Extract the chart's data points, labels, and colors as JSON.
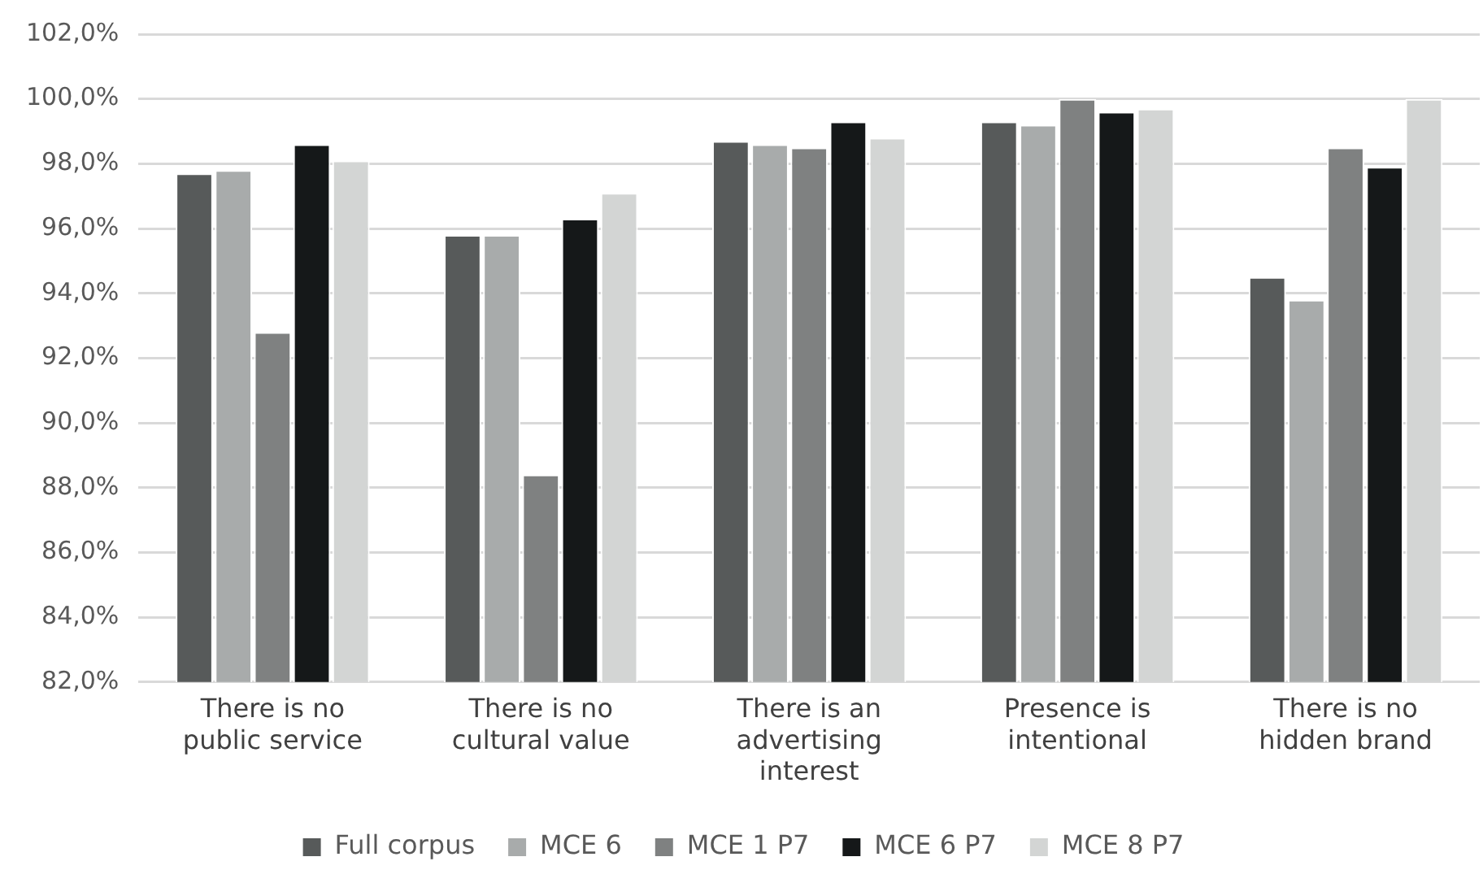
{
  "chart_data": {
    "type": "bar",
    "categories": [
      "There is no public service",
      "There is no cultural value",
      "There is an advertising interest",
      "Presence is intentional",
      "There is no hidden brand"
    ],
    "series": [
      {
        "name": "Full corpus",
        "color": "#575a5a",
        "values": [
          97.7,
          95.8,
          98.7,
          99.3,
          94.5
        ]
      },
      {
        "name": "MCE 6",
        "color": "#a8abab",
        "values": [
          97.8,
          95.8,
          98.6,
          99.2,
          93.8
        ]
      },
      {
        "name": "MCE 1 P7",
        "color": "#7f8181",
        "values": [
          92.8,
          88.4,
          98.5,
          100.0,
          98.5
        ]
      },
      {
        "name": "MCE 6 P7",
        "color": "#151819",
        "values": [
          98.6,
          96.3,
          99.3,
          99.6,
          97.9
        ]
      },
      {
        "name": "MCE 8 P7",
        "color": "#d3d5d4",
        "values": [
          98.1,
          97.1,
          98.8,
          99.7,
          100.0
        ]
      }
    ],
    "ylim": [
      82,
      102
    ],
    "yticks": [
      {
        "value": 82,
        "label": "82,0%"
      },
      {
        "value": 84,
        "label": "84,0%"
      },
      {
        "value": 86,
        "label": "86,0%"
      },
      {
        "value": 88,
        "label": "88,0%"
      },
      {
        "value": 90,
        "label": "90,0%"
      },
      {
        "value": 92,
        "label": "92,0%"
      },
      {
        "value": 94,
        "label": "94,0%"
      },
      {
        "value": 96,
        "label": "96,0%"
      },
      {
        "value": 98,
        "label": "98,0%"
      },
      {
        "value": 100,
        "label": "100,0%"
      },
      {
        "value": 102,
        "label": "102,0%"
      }
    ],
    "grid": "y",
    "legend": "bottom",
    "marker": "square"
  }
}
